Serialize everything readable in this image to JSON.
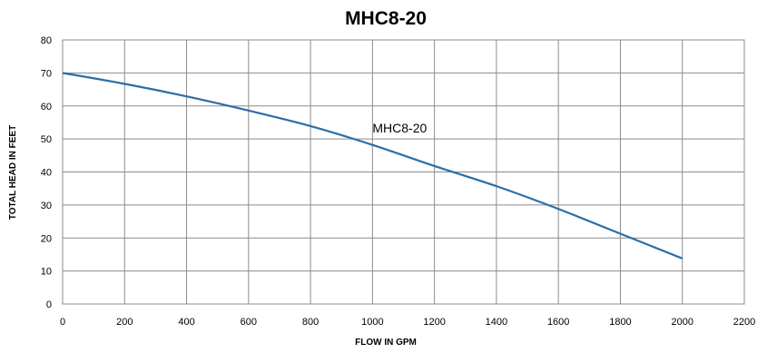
{
  "chart_data": {
    "type": "line",
    "title": "MHC8-20",
    "xlabel": "FLOW IN GPM",
    "ylabel": "TOTAL HEAD IN FEET",
    "xlim": [
      0,
      2200
    ],
    "ylim": [
      0,
      80
    ],
    "x_ticks": [
      0,
      200,
      400,
      600,
      800,
      1000,
      1200,
      1400,
      1600,
      1800,
      2000,
      2200
    ],
    "y_ticks": [
      0,
      10,
      20,
      30,
      40,
      50,
      60,
      70,
      80
    ],
    "grid": true,
    "legend": "none",
    "series": [
      {
        "name": "MHC8-20",
        "color": "#2e6da4",
        "x": [
          0,
          200,
          400,
          600,
          800,
          1000,
          1200,
          1400,
          1600,
          1800,
          2000
        ],
        "y": [
          70,
          66.7,
          62.9,
          58.6,
          53.9,
          48.2,
          41.8,
          35.7,
          28.8,
          21.3,
          13.8
        ]
      }
    ],
    "annotations": [
      {
        "text": "MHC8-20",
        "x": 1000,
        "y": 52
      }
    ]
  }
}
